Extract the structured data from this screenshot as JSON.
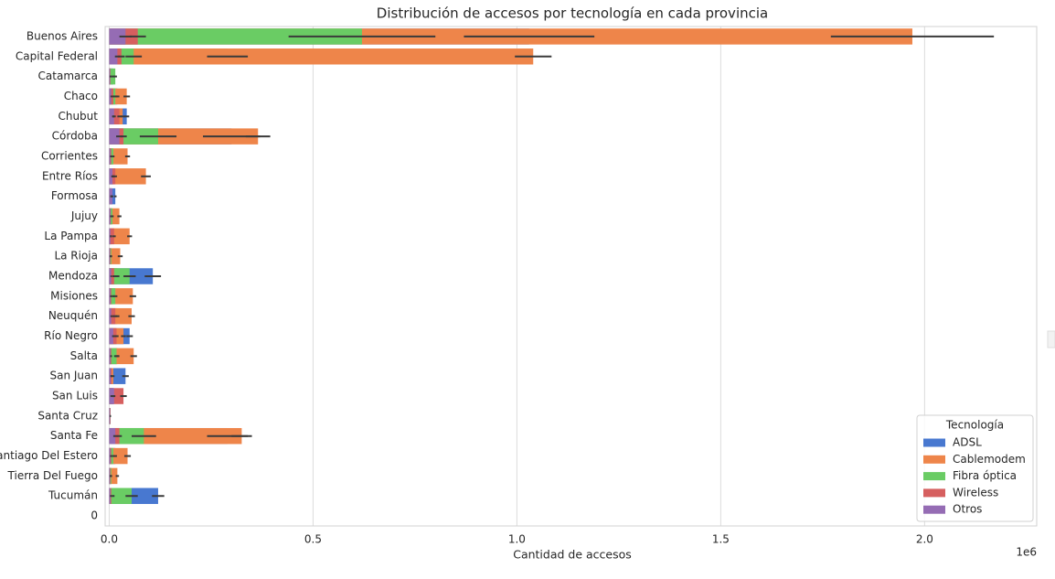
{
  "chart_data": {
    "type": "bar",
    "orientation": "horizontal",
    "overlap": true,
    "title": "Distribución de accesos por tecnología en cada provincia",
    "x_label": "Cantidad de accesos",
    "x_offset_label": "1e6",
    "categories": [
      "Buenos Aires",
      "Capital Federal",
      "Catamarca",
      "Chaco",
      "Chubut",
      "Córdoba",
      "Corrientes",
      "Entre Ríos",
      "Formosa",
      "Jujuy",
      "La Pampa",
      "La Rioja",
      "Mendoza",
      "Misiones",
      "Neuquén",
      "Río Negro",
      "Salta",
      "San Juan",
      "San Luis",
      "Santa Cruz",
      "Santa Fe",
      "Santiago Del Estero",
      "Tierra Del Fuego",
      "Tucumán",
      "0"
    ],
    "series": [
      {
        "name": "ADSL",
        "color": "#4878d0",
        "values": [
          1030000,
          290000,
          10000,
          20000,
          43000,
          300000,
          5000,
          10000,
          15000,
          5000,
          5000,
          5000,
          107000,
          10000,
          20000,
          50000,
          20000,
          40000,
          10000,
          3000,
          290000,
          15000,
          5000,
          120000,
          null
        ],
        "errors": [
          160000,
          50000,
          3000,
          5000,
          6000,
          70000,
          2000,
          3000,
          3000,
          2000,
          2000,
          2000,
          20000,
          3000,
          5000,
          8000,
          5000,
          8000,
          3000,
          1000,
          50000,
          4000,
          2000,
          15000,
          null
        ]
      },
      {
        "name": "Cablemodem",
        "color": "#ee854a",
        "values": [
          1970000,
          1040000,
          5000,
          43000,
          33000,
          365000,
          45000,
          90000,
          5000,
          25000,
          50000,
          27000,
          20000,
          58000,
          55000,
          35000,
          60000,
          10000,
          10000,
          3000,
          325000,
          45000,
          20000,
          10000,
          null
        ],
        "errors": [
          200000,
          45000,
          2000,
          8000,
          5000,
          30000,
          6000,
          12000,
          2000,
          5000,
          6000,
          6000,
          5000,
          8000,
          8000,
          6000,
          8000,
          3000,
          3000,
          1000,
          25000,
          8000,
          4000,
          3000,
          null
        ]
      },
      {
        "name": "Fibra óptica",
        "color": "#6acc64",
        "values": [
          620000,
          60000,
          15000,
          15000,
          10000,
          120000,
          10000,
          10000,
          5000,
          8000,
          4000,
          5000,
          50000,
          15000,
          10000,
          15000,
          18000,
          5000,
          5000,
          3000,
          85000,
          10000,
          5000,
          55000,
          null
        ],
        "errors": [
          180000,
          20000,
          4000,
          5000,
          3000,
          45000,
          3000,
          3000,
          2000,
          3000,
          2000,
          2000,
          15000,
          5000,
          3000,
          5000,
          6000,
          2000,
          2000,
          1000,
          30000,
          3000,
          2000,
          15000,
          null
        ]
      },
      {
        "name": "Wireless",
        "color": "#d65f5f",
        "values": [
          70000,
          30000,
          3000,
          10000,
          25000,
          35000,
          5000,
          15000,
          5000,
          4000,
          12000,
          3000,
          12000,
          5000,
          15000,
          18000,
          5000,
          6000,
          35000,
          3000,
          25000,
          5000,
          3000,
          5000,
          null
        ],
        "errors": [
          20000,
          8000,
          1000,
          3000,
          5000,
          8000,
          2000,
          4000,
          2000,
          1000,
          4000,
          1000,
          4000,
          2000,
          4000,
          5000,
          2000,
          2000,
          8000,
          1000,
          6000,
          2000,
          1000,
          2000,
          null
        ]
      },
      {
        "name": "Otros",
        "color": "#956cb4",
        "values": [
          40000,
          20000,
          2000,
          5000,
          12000,
          25000,
          3000,
          8000,
          8000,
          3000,
          3000,
          2000,
          5000,
          3000,
          5000,
          10000,
          3000,
          4000,
          12000,
          2000,
          15000,
          3000,
          2000,
          3000,
          null
        ],
        "errors": [
          15000,
          6000,
          1000,
          2000,
          4000,
          8000,
          1000,
          3000,
          2000,
          1000,
          1000,
          1000,
          2000,
          1000,
          2000,
          3000,
          1000,
          1000,
          3000,
          1000,
          5000,
          1000,
          1000,
          1000,
          null
        ]
      }
    ],
    "xlim": [
      -10000,
      2275000
    ],
    "xticks": [
      {
        "value": 0,
        "label": "0.0"
      },
      {
        "value": 500000,
        "label": "0.5"
      },
      {
        "value": 1000000,
        "label": "1.0"
      },
      {
        "value": 1500000,
        "label": "1.5"
      },
      {
        "value": 2000000,
        "label": "2.0"
      }
    ],
    "grid": true,
    "legend_title": "Tecnología",
    "legend_loc": "lower right"
  }
}
